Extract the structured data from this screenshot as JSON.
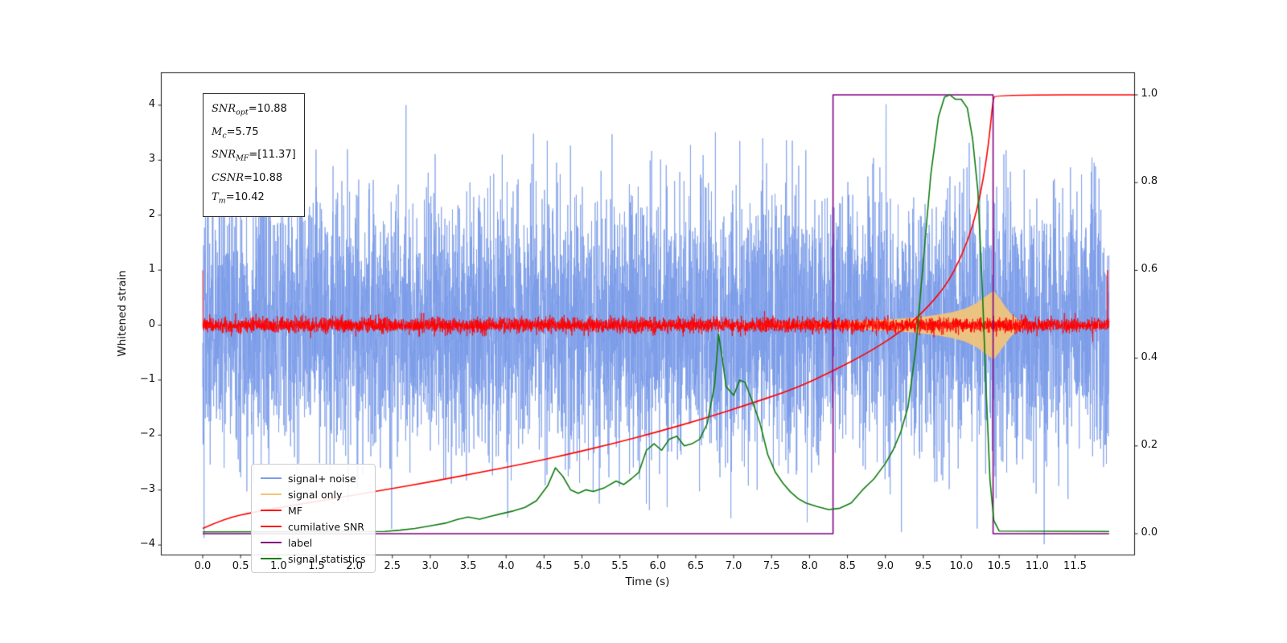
{
  "chart_data": {
    "type": "line",
    "title": "",
    "xlabel": "Time (s)",
    "ylabel_left": "Whitened strain",
    "xlim": [
      -0.55,
      12.28
    ],
    "ylim_left": [
      -4.17,
      4.6
    ],
    "ylim_right": [
      -0.048,
      1.051
    ],
    "grid": false,
    "legend_position": "lower-left",
    "xticks": {
      "values": [
        0,
        0.5,
        1,
        1.5,
        2,
        2.5,
        3,
        3.5,
        4,
        4.5,
        5,
        5.5,
        6,
        6.5,
        7,
        7.5,
        8,
        8.5,
        9,
        9.5,
        10,
        10.5,
        11,
        11.5
      ],
      "labels": [
        "0.0",
        "0.5",
        "1.0",
        "1.5",
        "2.0",
        "2.5",
        "3.0",
        "3.5",
        "4.0",
        "4.5",
        "5.0",
        "5.5",
        "6.0",
        "6.5",
        "7.0",
        "7.5",
        "8.0",
        "8.5",
        "9.0",
        "9.5",
        "10.0",
        "10.5",
        "11.0",
        "11.5"
      ]
    },
    "yticks_left": {
      "values": [
        -4,
        -3,
        -2,
        -1,
        0,
        1,
        2,
        3,
        4
      ],
      "labels": [
        "−4",
        "−3",
        "−2",
        "−1",
        "0",
        "1",
        "2",
        "3",
        "4"
      ]
    },
    "yticks_right": {
      "values": [
        0,
        0.2,
        0.4,
        0.6,
        0.8,
        1.0
      ],
      "labels": [
        "0.0",
        "0.2",
        "0.4",
        "0.6",
        "0.8",
        "1.0"
      ]
    },
    "series": [
      {
        "name": "signal+ noise",
        "type": "noise_line",
        "axis": "left",
        "color": "#7b9ce9",
        "seed": 42,
        "n": 5975,
        "t_start": 0.0,
        "t_end": 11.95,
        "std": 1.18,
        "spikes": []
      },
      {
        "name": "signal only",
        "type": "envelope_fill",
        "axis": "left",
        "color": "#f0c47c",
        "envelope": [
          [
            6.8,
            0.015
          ],
          [
            7.5,
            0.025
          ],
          [
            8.0,
            0.04
          ],
          [
            8.5,
            0.065
          ],
          [
            9.0,
            0.1
          ],
          [
            9.4,
            0.14
          ],
          [
            9.7,
            0.19
          ],
          [
            9.9,
            0.24
          ],
          [
            10.05,
            0.3
          ],
          [
            10.2,
            0.4
          ],
          [
            10.3,
            0.5
          ],
          [
            10.38,
            0.58
          ],
          [
            10.43,
            0.62
          ],
          [
            10.5,
            0.5
          ],
          [
            10.58,
            0.34
          ],
          [
            10.66,
            0.2
          ],
          [
            10.75,
            0.1
          ],
          [
            10.85,
            0.03
          ],
          [
            10.95,
            0.0
          ]
        ]
      },
      {
        "name": "MF",
        "type": "noise_line",
        "axis": "left",
        "color": "#ff0000",
        "seed": 7,
        "n": 5975,
        "t_start": 0.0,
        "t_end": 11.95,
        "std": 0.065,
        "spikes": [
          [
            0.0,
            1.0
          ],
          [
            11.93,
            1.0
          ]
        ]
      },
      {
        "name": "cumilative SNR",
        "type": "line",
        "axis": "right",
        "color": "#ff0000",
        "smooth": true,
        "points": [
          [
            0,
            0.012
          ],
          [
            0.3,
            0.035
          ],
          [
            0.7,
            0.05
          ],
          [
            1.2,
            0.065
          ],
          [
            1.8,
            0.082
          ],
          [
            2.4,
            0.1
          ],
          [
            3.0,
            0.118
          ],
          [
            3.6,
            0.138
          ],
          [
            4.2,
            0.158
          ],
          [
            4.8,
            0.18
          ],
          [
            5.4,
            0.205
          ],
          [
            6.0,
            0.232
          ],
          [
            6.6,
            0.262
          ],
          [
            7.2,
            0.295
          ],
          [
            7.8,
            0.33
          ],
          [
            8.3,
            0.37
          ],
          [
            8.8,
            0.415
          ],
          [
            9.2,
            0.46
          ],
          [
            9.5,
            0.505
          ],
          [
            9.8,
            0.565
          ],
          [
            10.0,
            0.63
          ],
          [
            10.15,
            0.7
          ],
          [
            10.25,
            0.77
          ],
          [
            10.33,
            0.85
          ],
          [
            10.38,
            0.92
          ],
          [
            10.42,
            0.99
          ],
          [
            10.45,
            1.0
          ],
          [
            12.28,
            1.0
          ]
        ]
      },
      {
        "name": "label",
        "type": "line",
        "axis": "right",
        "color": "#800080",
        "smooth": false,
        "points": [
          [
            0,
            0.0
          ],
          [
            8.31,
            0.0
          ],
          [
            8.31,
            1.0
          ],
          [
            10.42,
            1.0
          ],
          [
            10.42,
            0.0
          ],
          [
            11.95,
            0.0
          ]
        ]
      },
      {
        "name": "signal statistics",
        "type": "line",
        "axis": "right",
        "color": "#0e7c0e",
        "smooth": false,
        "points": [
          [
            0,
            0.004
          ],
          [
            2.4,
            0.005
          ],
          [
            2.6,
            0.008
          ],
          [
            2.8,
            0.012
          ],
          [
            3.0,
            0.018
          ],
          [
            3.2,
            0.024
          ],
          [
            3.35,
            0.032
          ],
          [
            3.5,
            0.038
          ],
          [
            3.65,
            0.033
          ],
          [
            3.8,
            0.04
          ],
          [
            3.95,
            0.046
          ],
          [
            4.1,
            0.052
          ],
          [
            4.25,
            0.06
          ],
          [
            4.4,
            0.075
          ],
          [
            4.55,
            0.11
          ],
          [
            4.65,
            0.15
          ],
          [
            4.75,
            0.13
          ],
          [
            4.85,
            0.1
          ],
          [
            4.95,
            0.092
          ],
          [
            5.05,
            0.1
          ],
          [
            5.15,
            0.096
          ],
          [
            5.3,
            0.105
          ],
          [
            5.45,
            0.12
          ],
          [
            5.55,
            0.112
          ],
          [
            5.65,
            0.125
          ],
          [
            5.75,
            0.14
          ],
          [
            5.85,
            0.19
          ],
          [
            5.95,
            0.205
          ],
          [
            6.05,
            0.19
          ],
          [
            6.15,
            0.215
          ],
          [
            6.25,
            0.222
          ],
          [
            6.35,
            0.2
          ],
          [
            6.45,
            0.205
          ],
          [
            6.55,
            0.215
          ],
          [
            6.65,
            0.25
          ],
          [
            6.75,
            0.34
          ],
          [
            6.8,
            0.455
          ],
          [
            6.85,
            0.4
          ],
          [
            6.9,
            0.335
          ],
          [
            7.0,
            0.315
          ],
          [
            7.08,
            0.35
          ],
          [
            7.15,
            0.345
          ],
          [
            7.25,
            0.3
          ],
          [
            7.35,
            0.25
          ],
          [
            7.45,
            0.18
          ],
          [
            7.55,
            0.14
          ],
          [
            7.65,
            0.115
          ],
          [
            7.75,
            0.095
          ],
          [
            7.85,
            0.08
          ],
          [
            7.95,
            0.07
          ],
          [
            8.1,
            0.062
          ],
          [
            8.25,
            0.055
          ],
          [
            8.4,
            0.058
          ],
          [
            8.55,
            0.07
          ],
          [
            8.7,
            0.1
          ],
          [
            8.85,
            0.125
          ],
          [
            9.0,
            0.16
          ],
          [
            9.1,
            0.19
          ],
          [
            9.2,
            0.23
          ],
          [
            9.3,
            0.29
          ],
          [
            9.4,
            0.42
          ],
          [
            9.5,
            0.62
          ],
          [
            9.6,
            0.82
          ],
          [
            9.7,
            0.95
          ],
          [
            9.78,
            0.995
          ],
          [
            9.85,
            1.0
          ],
          [
            9.92,
            0.99
          ],
          [
            10.0,
            0.99
          ],
          [
            10.08,
            0.97
          ],
          [
            10.15,
            0.9
          ],
          [
            10.22,
            0.78
          ],
          [
            10.28,
            0.55
          ],
          [
            10.33,
            0.32
          ],
          [
            10.38,
            0.12
          ],
          [
            10.43,
            0.03
          ],
          [
            10.5,
            0.006
          ],
          [
            11.95,
            0.005
          ]
        ]
      }
    ],
    "legend": {
      "items": [
        {
          "label": "signal+ noise",
          "color": "#7b9ce9"
        },
        {
          "label": "signal only",
          "color": "#f0c47c"
        },
        {
          "label": "MF",
          "color": "#ff0000"
        },
        {
          "label": "cumilative SNR",
          "color": "#ff0000"
        },
        {
          "label": "label",
          "color": "#800080"
        },
        {
          "label": "signal statistics",
          "color": "#0e7c0e"
        }
      ]
    },
    "annotation": {
      "lines": [
        {
          "main": "SNR",
          "sub": "opt",
          "rest": "=10.88"
        },
        {
          "main": "M",
          "sub": "c",
          "rest": "=5.75"
        },
        {
          "main": "SNR",
          "sub": "MF",
          "rest": "=[11.37]"
        },
        {
          "main": "CSNR",
          "sub": "",
          "rest": "=10.88"
        },
        {
          "main": "T",
          "sub": "m",
          "rest": "=10.42"
        }
      ]
    }
  }
}
